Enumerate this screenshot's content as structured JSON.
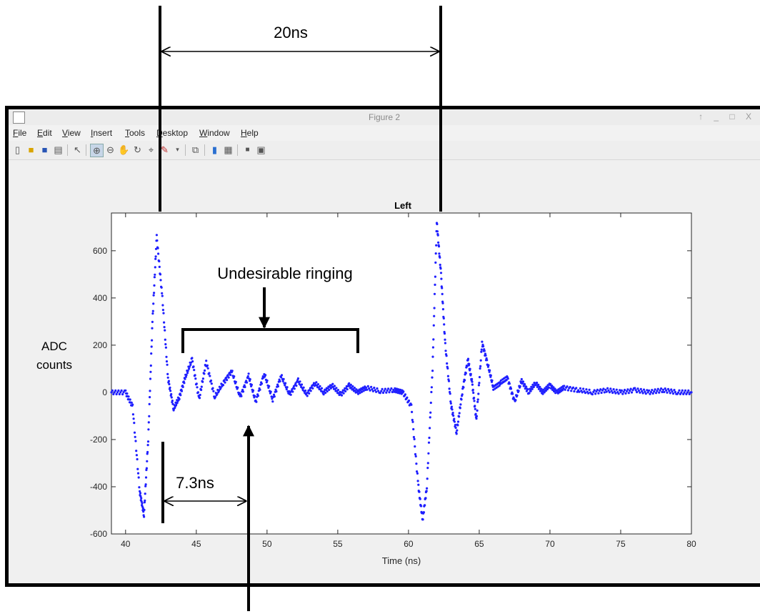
{
  "window": {
    "title": "Figure 2",
    "controls": "↑ _ □ X",
    "menu": [
      "File",
      "Edit",
      "View",
      "Insert",
      "Tools",
      "Desktop",
      "Window",
      "Help"
    ]
  },
  "toolbar": {
    "icons": [
      "new-figure-icon",
      "open-file-icon",
      "save-icon",
      "print-icon",
      "select-arrow-icon",
      "zoom-in-icon",
      "zoom-out-icon",
      "pan-icon",
      "rotate-3d-icon",
      "data-cursor-icon",
      "brush-icon",
      "dropdown-icon",
      "link-plot-icon",
      "colorbar-icon",
      "legend-icon",
      "hide-plot-tools-icon",
      "show-plot-tools-icon"
    ]
  },
  "chart_data": {
    "type": "scatter",
    "title": "Left",
    "xlabel": "Time (ns)",
    "ylabel": "",
    "xlim": [
      39,
      80
    ],
    "ylim": [
      -600,
      760
    ],
    "xticks": [
      40,
      45,
      50,
      55,
      60,
      65,
      70,
      75,
      80
    ],
    "yticks": [
      -600,
      -400,
      -200,
      0,
      200,
      400,
      600
    ],
    "grid": false,
    "series": [
      {
        "marker_color": "#1f1fff",
        "x": [
          39.0,
          40.0,
          40.5,
          41.0,
          41.3,
          41.6,
          41.9,
          42.2,
          42.6,
          43.0,
          43.4,
          43.8,
          44.2,
          44.7,
          45.2,
          45.7,
          46.3,
          46.9,
          47.5,
          48.1,
          48.7,
          49.2,
          49.8,
          50.4,
          51.0,
          51.6,
          52.2,
          52.8,
          53.4,
          54.0,
          54.6,
          55.2,
          55.8,
          56.4,
          57.0,
          58.0,
          59.0,
          59.6,
          60.2,
          60.7,
          61.0,
          61.3,
          61.7,
          62.0,
          62.3,
          62.6,
          63.0,
          63.4,
          63.8,
          64.2,
          64.5,
          64.8,
          65.2,
          65.6,
          66.0,
          66.5,
          67.0,
          67.5,
          68.0,
          68.5,
          69.0,
          69.5,
          70.0,
          70.5,
          71.0,
          72.0,
          73.0,
          74.0,
          75.0,
          76.0,
          77.0,
          78.0,
          79.0,
          80.0
        ],
        "y": [
          0,
          0,
          -60,
          -420,
          -520,
          -200,
          300,
          660,
          400,
          60,
          -70,
          -20,
          60,
          140,
          -30,
          130,
          -20,
          40,
          90,
          -20,
          70,
          -40,
          80,
          -30,
          70,
          -10,
          50,
          -10,
          40,
          0,
          30,
          -10,
          30,
          0,
          20,
          5,
          10,
          0,
          -60,
          -400,
          -540,
          -400,
          100,
          720,
          500,
          200,
          -50,
          -170,
          0,
          140,
          40,
          -120,
          210,
          120,
          20,
          40,
          60,
          -40,
          50,
          0,
          40,
          0,
          30,
          0,
          20,
          10,
          0,
          10,
          0,
          10,
          0,
          10,
          0,
          0
        ]
      }
    ],
    "annotations": {
      "ylabel_outer": [
        "ADC",
        "counts"
      ],
      "period_label": "20ns",
      "ringing_label": "Undesirable ringing",
      "ringing_period_label": "7.3ns"
    }
  }
}
